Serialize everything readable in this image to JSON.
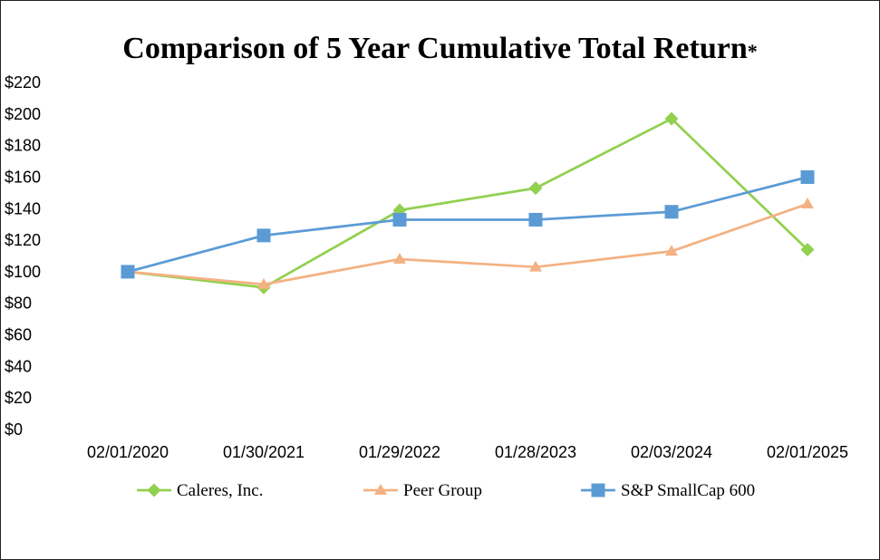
{
  "title": "Comparison of 5 Year Cumulative Total Return",
  "title_mark": "*",
  "chart_data": {
    "type": "line",
    "title": "Comparison of 5 Year Cumulative Total Return*",
    "categories": [
      "02/01/2020",
      "01/30/2021",
      "01/29/2022",
      "01/28/2023",
      "02/03/2024",
      "02/01/2025"
    ],
    "y_ticks": [
      "$0",
      "$20",
      "$40",
      "$60",
      "$80",
      "$100",
      "$120",
      "$140",
      "$160",
      "$180",
      "$200",
      "$220"
    ],
    "ylim": [
      0,
      220
    ],
    "y_step": 20,
    "grid": false,
    "legend_position": "bottom",
    "series": [
      {
        "name": "Caleres, Inc.",
        "color": "#92D050",
        "marker": "diamond",
        "values": [
          100,
          90,
          139,
          153,
          197,
          114
        ]
      },
      {
        "name": "Peer Group",
        "color": "#F4B183",
        "marker": "triangle",
        "values": [
          100,
          92,
          108,
          103,
          113,
          143
        ]
      },
      {
        "name": "S&P SmallCap 600",
        "color": "#5B9BD5",
        "marker": "square",
        "values": [
          100,
          123,
          133,
          133,
          138,
          160
        ]
      }
    ]
  }
}
